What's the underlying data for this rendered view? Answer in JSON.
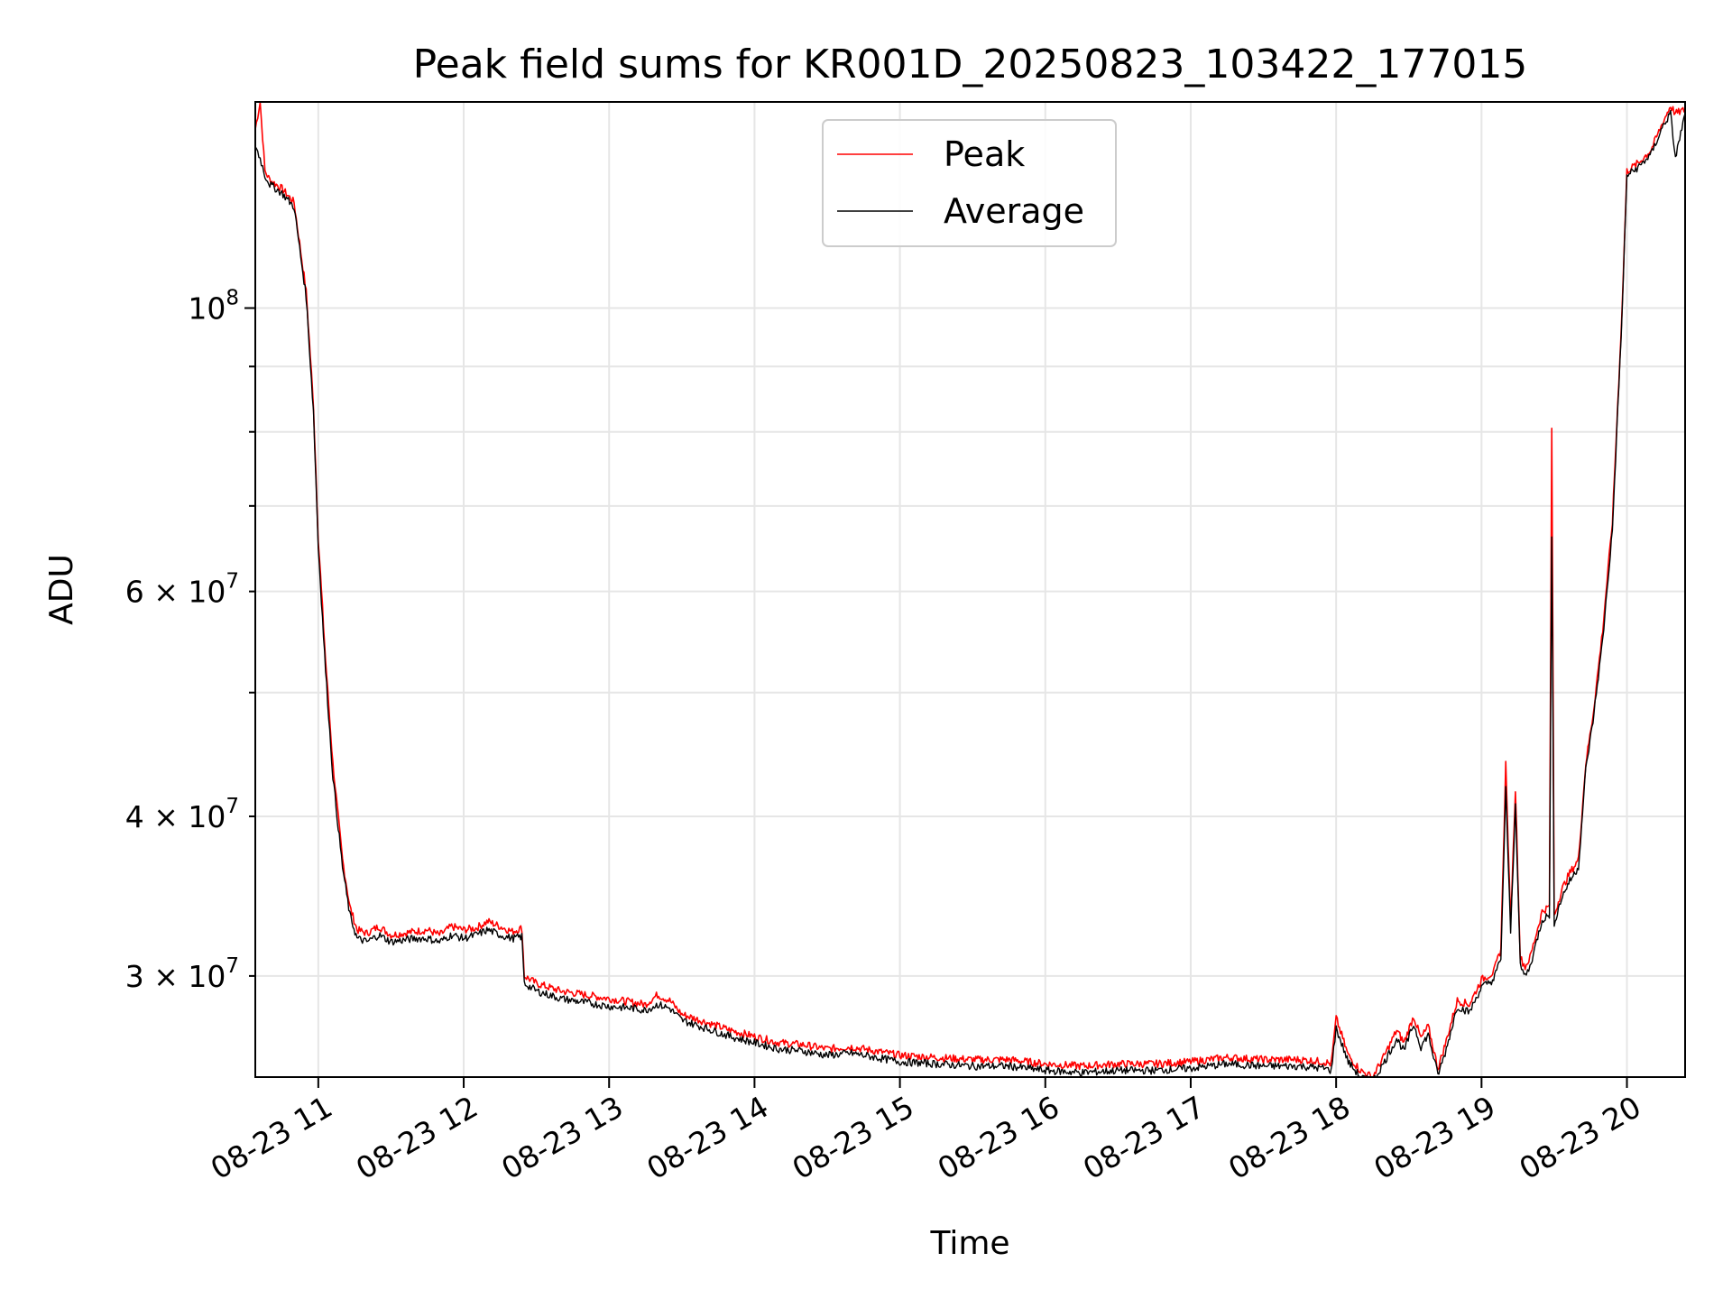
{
  "chart_data": {
    "type": "line",
    "title": "Peak field sums for KR001D_20250823_103422_177015",
    "xlabel": "Time",
    "ylabel": "ADU",
    "x_range": [
      "2025-08-23 10:34",
      "2025-08-23 20:24"
    ],
    "x_ticks": [
      "08-23 11",
      "08-23 12",
      "08-23 13",
      "08-23 14",
      "08-23 15",
      "08-23 16",
      "08-23 17",
      "08-23 18",
      "08-23 19",
      "08-23 20"
    ],
    "y_scale": "log",
    "ylim": [
      25000000,
      145000000
    ],
    "y_major_ticks": [
      {
        "value": 100000000,
        "mant": "10",
        "exp": "8"
      }
    ],
    "y_minor_ticks": [
      {
        "value": 30000000,
        "mant": "3 × 10",
        "exp": "7"
      },
      {
        "value": 40000000,
        "mant": "4 × 10",
        "exp": "7"
      },
      {
        "value": 60000000,
        "mant": "6 × 10",
        "exp": "7"
      }
    ],
    "y_minor_unlabeled": [
      50000000,
      70000000,
      80000000,
      90000000
    ],
    "grid": true,
    "legend_placement": "upper-center",
    "series": [
      {
        "name": "Peak",
        "color": "#ff0000",
        "x": [
          "2025-08-23 10:34",
          "2025-08-23 10:36",
          "2025-08-23 10:38",
          "2025-08-23 10:40",
          "2025-08-23 10:45",
          "2025-08-23 10:50",
          "2025-08-23 10:55",
          "2025-08-23 10:58",
          "2025-08-23 11:00",
          "2025-08-23 11:03",
          "2025-08-23 11:06",
          "2025-08-23 11:10",
          "2025-08-23 11:13",
          "2025-08-23 11:16",
          "2025-08-23 11:20",
          "2025-08-23 11:25",
          "2025-08-23 11:30",
          "2025-08-23 11:35",
          "2025-08-23 11:40",
          "2025-08-23 11:45",
          "2025-08-23 11:50",
          "2025-08-23 11:55",
          "2025-08-23 12:00",
          "2025-08-23 12:05",
          "2025-08-23 12:10",
          "2025-08-23 12:15",
          "2025-08-23 12:20",
          "2025-08-23 12:24",
          "2025-08-23 12:25",
          "2025-08-23 12:30",
          "2025-08-23 12:40",
          "2025-08-23 12:50",
          "2025-08-23 13:00",
          "2025-08-23 13:10",
          "2025-08-23 13:15",
          "2025-08-23 13:20",
          "2025-08-23 13:25",
          "2025-08-23 13:30",
          "2025-08-23 13:40",
          "2025-08-23 13:50",
          "2025-08-23 14:00",
          "2025-08-23 14:10",
          "2025-08-23 14:20",
          "2025-08-23 14:30",
          "2025-08-23 14:40",
          "2025-08-23 14:50",
          "2025-08-23 15:00",
          "2025-08-23 15:15",
          "2025-08-23 15:30",
          "2025-08-23 15:45",
          "2025-08-23 16:00",
          "2025-08-23 16:15",
          "2025-08-23 16:30",
          "2025-08-23 16:45",
          "2025-08-23 17:00",
          "2025-08-23 17:15",
          "2025-08-23 17:30",
          "2025-08-23 17:45",
          "2025-08-23 17:55",
          "2025-08-23 17:58",
          "2025-08-23 18:00",
          "2025-08-23 18:05",
          "2025-08-23 18:10",
          "2025-08-23 18:15",
          "2025-08-23 18:20",
          "2025-08-23 18:25",
          "2025-08-23 18:28",
          "2025-08-23 18:32",
          "2025-08-23 18:35",
          "2025-08-23 18:38",
          "2025-08-23 18:42",
          "2025-08-23 18:45",
          "2025-08-23 18:50",
          "2025-08-23 18:55",
          "2025-08-23 19:00",
          "2025-08-23 19:05",
          "2025-08-23 19:08",
          "2025-08-23 19:10",
          "2025-08-23 19:12",
          "2025-08-23 19:14",
          "2025-08-23 19:16",
          "2025-08-23 19:18",
          "2025-08-23 19:20",
          "2025-08-23 19:25",
          "2025-08-23 19:28",
          "2025-08-23 19:29",
          "2025-08-23 19:30",
          "2025-08-23 19:33",
          "2025-08-23 19:36",
          "2025-08-23 19:40",
          "2025-08-23 19:43",
          "2025-08-23 19:46",
          "2025-08-23 19:50",
          "2025-08-23 19:54",
          "2025-08-23 19:58",
          "2025-08-23 20:00",
          "2025-08-23 20:05",
          "2025-08-23 20:10",
          "2025-08-23 20:15",
          "2025-08-23 20:18",
          "2025-08-23 20:20",
          "2025-08-23 20:24"
        ],
        "y": [
          138000000,
          145000000,
          128000000,
          126000000,
          124000000,
          121000000,
          103000000,
          84000000,
          66000000,
          53000000,
          44000000,
          37000000,
          34000000,
          32600000,
          32400000,
          32800000,
          32300000,
          32400000,
          32500000,
          32600000,
          32300000,
          32800000,
          32600000,
          32700000,
          33100000,
          32800000,
          32500000,
          32700000,
          30000000,
          29600000,
          29200000,
          29000000,
          28800000,
          28600000,
          28500000,
          29000000,
          28700000,
          28000000,
          27600000,
          27200000,
          26900000,
          26600000,
          26500000,
          26300000,
          26400000,
          26200000,
          26000000,
          25900000,
          25800000,
          25800000,
          25600000,
          25500000,
          25600000,
          25600000,
          25700000,
          25900000,
          25800000,
          25800000,
          25700000,
          25600000,
          27800000,
          26000000,
          25300000,
          25000000,
          26000000,
          27200000,
          26600000,
          27900000,
          26800000,
          27400000,
          25400000,
          26500000,
          28700000,
          28500000,
          29800000,
          30200000,
          31500000,
          44000000,
          33000000,
          42000000,
          31000000,
          30500000,
          31000000,
          33700000,
          34000000,
          80000000,
          33400000,
          35000000,
          36000000,
          37000000,
          44000000,
          48000000,
          56000000,
          68000000,
          100000000,
          128000000,
          130000000,
          133000000,
          140000000,
          144000000,
          142000000,
          143000000
        ]
      },
      {
        "name": "Average",
        "color": "#000000",
        "x": [
          "2025-08-23 10:34",
          "2025-08-23 10:36",
          "2025-08-23 10:38",
          "2025-08-23 10:40",
          "2025-08-23 10:45",
          "2025-08-23 10:50",
          "2025-08-23 10:55",
          "2025-08-23 10:58",
          "2025-08-23 11:00",
          "2025-08-23 11:03",
          "2025-08-23 11:06",
          "2025-08-23 11:10",
          "2025-08-23 11:13",
          "2025-08-23 11:16",
          "2025-08-23 11:20",
          "2025-08-23 11:25",
          "2025-08-23 11:30",
          "2025-08-23 11:35",
          "2025-08-23 11:40",
          "2025-08-23 11:45",
          "2025-08-23 11:50",
          "2025-08-23 11:55",
          "2025-08-23 12:00",
          "2025-08-23 12:05",
          "2025-08-23 12:10",
          "2025-08-23 12:15",
          "2025-08-23 12:20",
          "2025-08-23 12:24",
          "2025-08-23 12:25",
          "2025-08-23 12:30",
          "2025-08-23 12:40",
          "2025-08-23 12:50",
          "2025-08-23 13:00",
          "2025-08-23 13:10",
          "2025-08-23 13:15",
          "2025-08-23 13:20",
          "2025-08-23 13:25",
          "2025-08-23 13:30",
          "2025-08-23 13:40",
          "2025-08-23 13:50",
          "2025-08-23 14:00",
          "2025-08-23 14:10",
          "2025-08-23 14:20",
          "2025-08-23 14:30",
          "2025-08-23 14:40",
          "2025-08-23 14:50",
          "2025-08-23 15:00",
          "2025-08-23 15:15",
          "2025-08-23 15:30",
          "2025-08-23 15:45",
          "2025-08-23 16:00",
          "2025-08-23 16:15",
          "2025-08-23 16:30",
          "2025-08-23 16:45",
          "2025-08-23 17:00",
          "2025-08-23 17:15",
          "2025-08-23 17:30",
          "2025-08-23 17:45",
          "2025-08-23 17:55",
          "2025-08-23 17:58",
          "2025-08-23 18:00",
          "2025-08-23 18:05",
          "2025-08-23 18:10",
          "2025-08-23 18:15",
          "2025-08-23 18:20",
          "2025-08-23 18:25",
          "2025-08-23 18:28",
          "2025-08-23 18:32",
          "2025-08-23 18:35",
          "2025-08-23 18:38",
          "2025-08-23 18:42",
          "2025-08-23 18:45",
          "2025-08-23 18:50",
          "2025-08-23 18:55",
          "2025-08-23 19:00",
          "2025-08-23 19:05",
          "2025-08-23 19:08",
          "2025-08-23 19:10",
          "2025-08-23 19:12",
          "2025-08-23 19:14",
          "2025-08-23 19:16",
          "2025-08-23 19:18",
          "2025-08-23 19:20",
          "2025-08-23 19:25",
          "2025-08-23 19:28",
          "2025-08-23 19:29",
          "2025-08-23 19:30",
          "2025-08-23 19:33",
          "2025-08-23 19:36",
          "2025-08-23 19:40",
          "2025-08-23 19:43",
          "2025-08-23 19:46",
          "2025-08-23 19:50",
          "2025-08-23 19:54",
          "2025-08-23 19:58",
          "2025-08-23 20:00",
          "2025-08-23 20:05",
          "2025-08-23 20:10",
          "2025-08-23 20:15",
          "2025-08-23 20:18",
          "2025-08-23 20:20",
          "2025-08-23 20:24"
        ],
        "y": [
          134000000,
          131000000,
          127000000,
          125000000,
          123000000,
          120000000,
          102000000,
          83000000,
          65000000,
          52000000,
          43000000,
          36500000,
          33500000,
          32100000,
          31900000,
          32300000,
          31900000,
          32000000,
          32100000,
          32100000,
          31900000,
          32300000,
          32100000,
          32300000,
          32600000,
          32300000,
          32100000,
          32200000,
          29600000,
          29200000,
          28800000,
          28600000,
          28400000,
          28300000,
          28200000,
          28500000,
          28300000,
          27700000,
          27300000,
          26900000,
          26600000,
          26300000,
          26200000,
          26000000,
          26100000,
          25900000,
          25700000,
          25600000,
          25500000,
          25500000,
          25300000,
          25200000,
          25300000,
          25300000,
          25400000,
          25600000,
          25500000,
          25500000,
          25400000,
          25300000,
          27300000,
          25700000,
          25000000,
          24800000,
          25700000,
          26800000,
          26200000,
          27500000,
          26400000,
          27000000,
          25100000,
          26100000,
          28400000,
          28100000,
          29400000,
          29800000,
          31000000,
          42000000,
          32500000,
          41000000,
          30500000,
          30000000,
          30500000,
          33200000,
          33500000,
          66000000,
          33000000,
          34500000,
          35500000,
          36500000,
          43500000,
          47500000,
          55000000,
          67000000,
          99000000,
          127000000,
          129000000,
          132000000,
          139000000,
          142000000,
          131000000,
          142000000
        ]
      }
    ]
  }
}
